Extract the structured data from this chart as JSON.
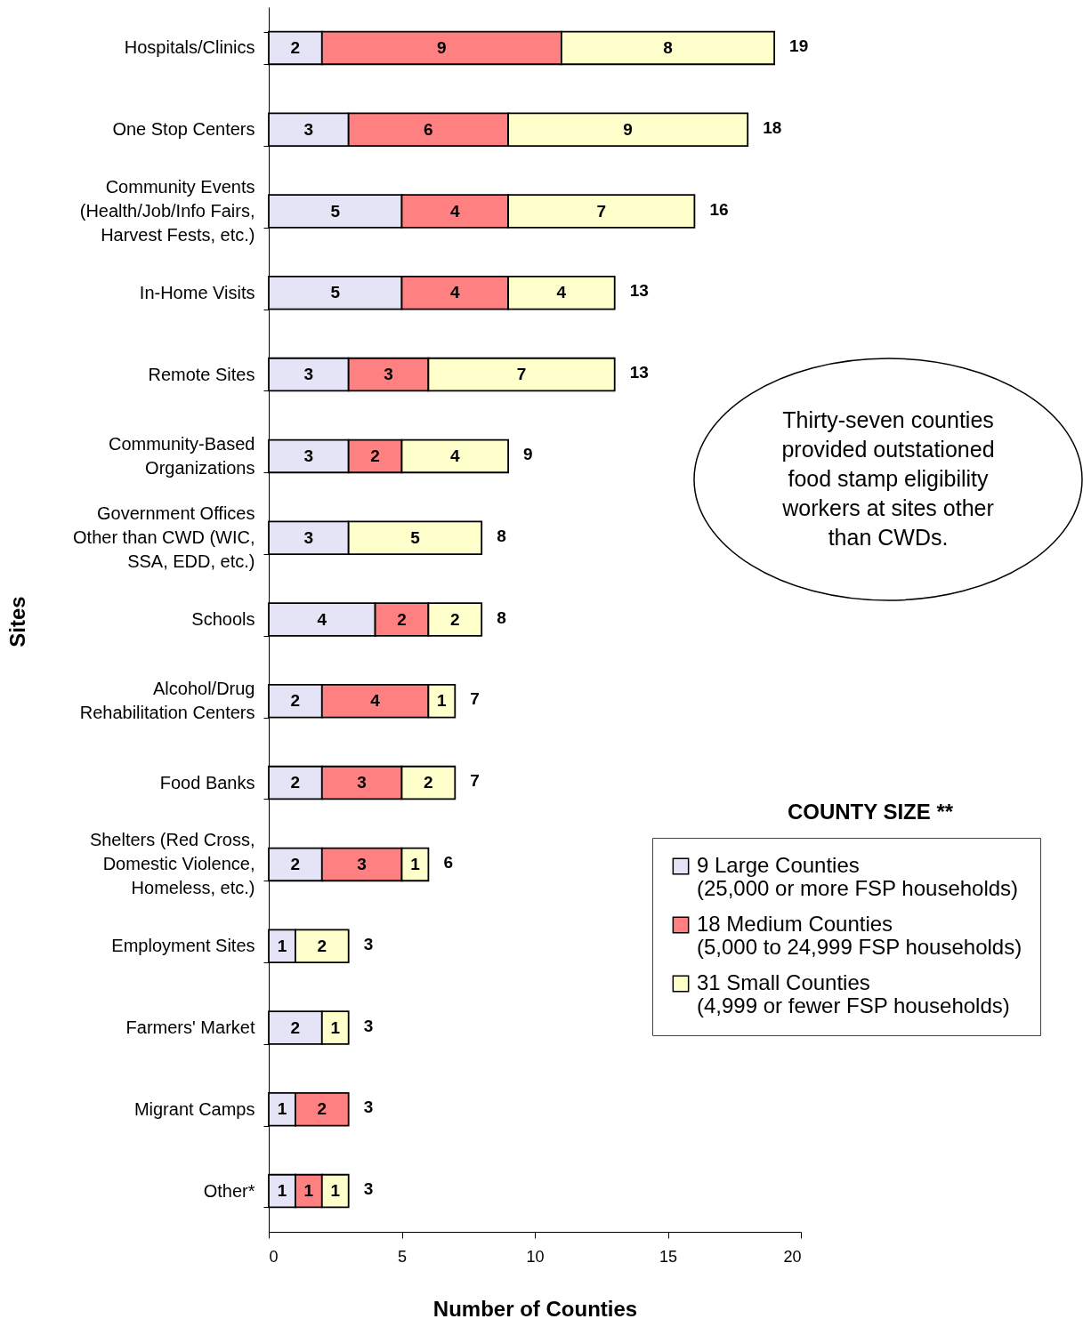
{
  "chart_data": {
    "type": "bar",
    "orientation": "horizontal",
    "stacked": true,
    "categories": [
      "Hospitals/Clinics",
      "One Stop Centers",
      "Community Events\n(Health/Job/Info Fairs,\nHarvest Fests, etc.)",
      "In-Home Visits",
      "Remote Sites",
      "Community-Based\nOrganizations",
      "Government Offices\nOther than CWD (WIC,\nSSA, EDD, etc.)",
      "Schools",
      "Alcohol/Drug\nRehabilitation Centers",
      "Food Banks",
      "Shelters (Red Cross,\nDomestic Violence,\nHomeless, etc.)",
      "Employment Sites",
      "Farmers' Market",
      "Migrant Camps",
      "Other*"
    ],
    "series": [
      {
        "name": "9 Large Counties\n(25,000 or more FSP households)",
        "color": "#e4e4f6",
        "values": [
          2,
          3,
          5,
          5,
          3,
          3,
          3,
          4,
          2,
          2,
          2,
          1,
          2,
          1,
          1
        ]
      },
      {
        "name": "18 Medium Counties\n(5,000 to 24,999 FSP households)",
        "color": "#ff8080",
        "values": [
          9,
          6,
          4,
          4,
          3,
          2,
          null,
          2,
          4,
          3,
          3,
          null,
          null,
          2,
          1
        ]
      },
      {
        "name": "31 Small Counties\n(4,999 or fewer FSP households)",
        "color": "#ffffcc",
        "values": [
          8,
          9,
          7,
          4,
          7,
          4,
          5,
          2,
          1,
          2,
          1,
          2,
          1,
          null,
          1
        ]
      }
    ],
    "totals": [
      "19",
      "18",
      "16",
      "13",
      "13",
      "9",
      "8",
      "8",
      "7",
      "7",
      "6",
      "3",
      "3",
      "3",
      "3"
    ],
    "data_labels": true,
    "xlabel": "Number of Counties",
    "ylabel": "Sites",
    "legend_title": "COUNTY SIZE **",
    "xlim": [
      0,
      20
    ],
    "xticks": [
      0,
      5,
      10,
      15,
      20
    ],
    "grid": false,
    "legend": "bottom right",
    "annotations": [
      "Thirty-seven counties\nprovided outstationed\nfood stamp eligibility\nworkers at sites other\nthan CWDs."
    ]
  }
}
